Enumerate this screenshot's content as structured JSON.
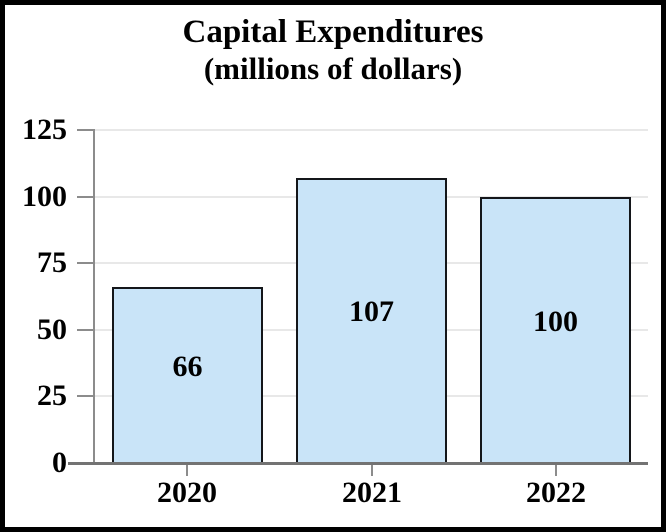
{
  "chart_data": {
    "type": "bar",
    "title": "Capital Expenditures",
    "subtitle": "(millions of dollars)",
    "categories": [
      "2020",
      "2021",
      "2022"
    ],
    "values": [
      66,
      107,
      100
    ],
    "bar_labels": [
      "66",
      "107",
      "100"
    ],
    "xlabel": "",
    "ylabel": "",
    "ylim": [
      0,
      125
    ],
    "yticks": [
      0,
      25,
      50,
      75,
      100,
      125
    ],
    "grid": true,
    "legend": "none",
    "colors": {
      "bar_fill": "#c9e4f8",
      "bar_border": "#14161a",
      "axis": "#8c8c8c",
      "baseline": "#737373",
      "gridline": "#e8e8e8",
      "text": "#000000",
      "frame_border": "#000000",
      "background": "#ffffff"
    }
  }
}
